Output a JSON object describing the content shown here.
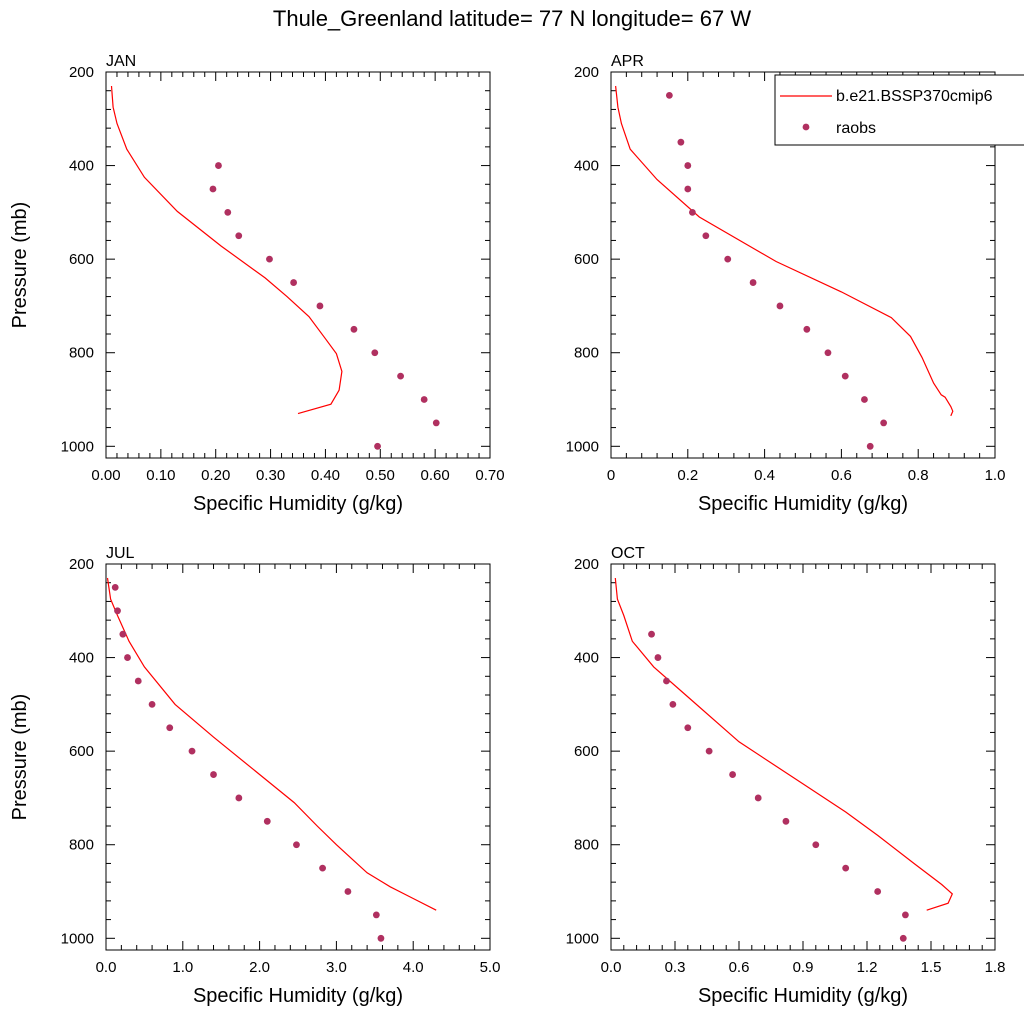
{
  "title": "Thule_Greenland  latitude= 77 N longitude= 67 W",
  "colors": {
    "model": "#ff0000",
    "obs": "#b03060",
    "axis": "#000000"
  },
  "legend": {
    "model_label": "b.e21.BSSP370cmip6",
    "obs_label": "raobs",
    "placement": "top-right of APR panel"
  },
  "chart_data": [
    {
      "type": "line",
      "panel": "JAN",
      "xlabel": "Specific Humidity (g/kg)",
      "ylabel": "Pressure (mb)",
      "xlim": [
        0,
        0.7
      ],
      "ylim": [
        200,
        1025
      ],
      "y_inverted": true,
      "xticks": [
        0,
        0.1,
        0.2,
        0.3,
        0.4,
        0.5,
        0.6,
        0.7
      ],
      "xtick_labels": [
        "0.00",
        "0.10",
        "0.20",
        "0.30",
        "0.40",
        "0.50",
        "0.60",
        "0.70"
      ],
      "yticks": [
        200,
        400,
        600,
        800,
        1000
      ],
      "ytick_labels": [
        "200",
        "400",
        "600",
        "800",
        "1000"
      ],
      "series": [
        {
          "name": "b.e21.BSSP370cmip6",
          "kind": "line",
          "points": [
            [
              0.01,
              230
            ],
            [
              0.013,
              275
            ],
            [
              0.02,
              310
            ],
            [
              0.038,
              365
            ],
            [
              0.07,
              425
            ],
            [
              0.13,
              498
            ],
            [
              0.21,
              572
            ],
            [
              0.29,
              640
            ],
            [
              0.33,
              680
            ],
            [
              0.37,
              723
            ],
            [
              0.4,
              770
            ],
            [
              0.42,
              802
            ],
            [
              0.43,
              840
            ],
            [
              0.425,
              880
            ],
            [
              0.41,
              910
            ],
            [
              0.35,
              930
            ]
          ]
        },
        {
          "name": "raobs",
          "kind": "points",
          "points": [
            [
              0.205,
              400
            ],
            [
              0.195,
              450
            ],
            [
              0.222,
              500
            ],
            [
              0.242,
              550
            ],
            [
              0.298,
              600
            ],
            [
              0.342,
              650
            ],
            [
              0.39,
              700
            ],
            [
              0.452,
              750
            ],
            [
              0.49,
              800
            ],
            [
              0.537,
              850
            ],
            [
              0.58,
              900
            ],
            [
              0.602,
              950
            ],
            [
              0.495,
              1000
            ]
          ]
        }
      ]
    },
    {
      "type": "line",
      "panel": "APR",
      "xlabel": "Specific Humidity (g/kg)",
      "ylabel": "",
      "xlim": [
        0,
        1.0
      ],
      "ylim": [
        200,
        1025
      ],
      "y_inverted": true,
      "xticks": [
        0,
        0.2,
        0.4,
        0.6,
        0.8,
        1.0
      ],
      "xtick_labels": [
        "0",
        "0.2",
        "0.4",
        "0.6",
        "0.8",
        "1.0"
      ],
      "yticks": [
        200,
        400,
        600,
        800,
        1000
      ],
      "ytick_labels": [
        "200",
        "400",
        "600",
        "800",
        "1000"
      ],
      "series": [
        {
          "name": "b.e21.BSSP370cmip6",
          "kind": "line",
          "points": [
            [
              0.012,
              230
            ],
            [
              0.018,
              275
            ],
            [
              0.027,
              310
            ],
            [
              0.05,
              365
            ],
            [
              0.12,
              430
            ],
            [
              0.23,
              510
            ],
            [
              0.43,
              605
            ],
            [
              0.6,
              670
            ],
            [
              0.73,
              725
            ],
            [
              0.78,
              765
            ],
            [
              0.81,
              810
            ],
            [
              0.84,
              865
            ],
            [
              0.86,
              890
            ],
            [
              0.87,
              895
            ],
            [
              0.885,
              915
            ],
            [
              0.89,
              925
            ],
            [
              0.885,
              935
            ]
          ]
        },
        {
          "name": "raobs",
          "kind": "points",
          "points": [
            [
              0.152,
              250
            ],
            [
              0.182,
              350
            ],
            [
              0.2,
              400
            ],
            [
              0.2,
              450
            ],
            [
              0.212,
              500
            ],
            [
              0.247,
              550
            ],
            [
              0.304,
              600
            ],
            [
              0.37,
              650
            ],
            [
              0.44,
              700
            ],
            [
              0.51,
              750
            ],
            [
              0.565,
              800
            ],
            [
              0.61,
              850
            ],
            [
              0.66,
              900
            ],
            [
              0.71,
              950
            ],
            [
              0.675,
              1000
            ]
          ]
        }
      ]
    },
    {
      "type": "line",
      "panel": "JUL",
      "xlabel": "Specific Humidity (g/kg)",
      "ylabel": "Pressure (mb)",
      "xlim": [
        0,
        5.0
      ],
      "ylim": [
        200,
        1025
      ],
      "y_inverted": true,
      "xticks": [
        0,
        1,
        2,
        3,
        4,
        5
      ],
      "xtick_labels": [
        "0.0",
        "1.0",
        "2.0",
        "3.0",
        "4.0",
        "5.0"
      ],
      "yticks": [
        200,
        400,
        600,
        800,
        1000
      ],
      "ytick_labels": [
        "200",
        "400",
        "600",
        "800",
        "1000"
      ],
      "series": [
        {
          "name": "b.e21.BSSP370cmip6",
          "kind": "line",
          "points": [
            [
              0.02,
              230
            ],
            [
              0.06,
              275
            ],
            [
              0.15,
              310
            ],
            [
              0.3,
              365
            ],
            [
              0.5,
              420
            ],
            [
              0.9,
              500
            ],
            [
              1.4,
              570
            ],
            [
              2.0,
              650
            ],
            [
              2.45,
              710
            ],
            [
              2.75,
              760
            ],
            [
              3.0,
              800
            ],
            [
              3.2,
              830
            ],
            [
              3.4,
              860
            ],
            [
              3.7,
              890
            ],
            [
              4.0,
              915
            ],
            [
              4.3,
              940
            ]
          ]
        },
        {
          "name": "raobs",
          "kind": "points",
          "points": [
            [
              0.12,
              250
            ],
            [
              0.15,
              300
            ],
            [
              0.22,
              350
            ],
            [
              0.28,
              400
            ],
            [
              0.42,
              450
            ],
            [
              0.6,
              500
            ],
            [
              0.83,
              550
            ],
            [
              1.12,
              600
            ],
            [
              1.4,
              650
            ],
            [
              1.73,
              700
            ],
            [
              2.1,
              750
            ],
            [
              2.48,
              800
            ],
            [
              2.82,
              850
            ],
            [
              3.15,
              900
            ],
            [
              3.52,
              950
            ],
            [
              3.58,
              1000
            ]
          ]
        }
      ]
    },
    {
      "type": "line",
      "panel": "OCT",
      "xlabel": "Specific Humidity (g/kg)",
      "ylabel": "",
      "xlim": [
        0,
        1.8
      ],
      "ylim": [
        200,
        1025
      ],
      "y_inverted": true,
      "xticks": [
        0,
        0.3,
        0.6,
        0.9,
        1.2,
        1.5,
        1.8
      ],
      "xtick_labels": [
        "0.0",
        "0.3",
        "0.6",
        "0.9",
        "1.2",
        "1.5",
        "1.8"
      ],
      "yticks": [
        200,
        400,
        600,
        800,
        1000
      ],
      "ytick_labels": [
        "200",
        "400",
        "600",
        "800",
        "1000"
      ],
      "series": [
        {
          "name": "b.e21.BSSP370cmip6",
          "kind": "line",
          "points": [
            [
              0.02,
              230
            ],
            [
              0.03,
              275
            ],
            [
              0.06,
              310
            ],
            [
              0.1,
              365
            ],
            [
              0.2,
              420
            ],
            [
              0.35,
              480
            ],
            [
              0.6,
              580
            ],
            [
              0.9,
              670
            ],
            [
              1.1,
              730
            ],
            [
              1.25,
              780
            ],
            [
              1.42,
              840
            ],
            [
              1.55,
              885
            ],
            [
              1.6,
              905
            ],
            [
              1.58,
              925
            ],
            [
              1.48,
              940
            ]
          ]
        },
        {
          "name": "raobs",
          "kind": "points",
          "points": [
            [
              0.19,
              350
            ],
            [
              0.22,
              400
            ],
            [
              0.26,
              450
            ],
            [
              0.29,
              500
            ],
            [
              0.36,
              550
            ],
            [
              0.46,
              600
            ],
            [
              0.57,
              650
            ],
            [
              0.69,
              700
            ],
            [
              0.82,
              750
            ],
            [
              0.96,
              800
            ],
            [
              1.1,
              850
            ],
            [
              1.25,
              900
            ],
            [
              1.38,
              950
            ],
            [
              1.37,
              1000
            ]
          ]
        }
      ]
    }
  ]
}
